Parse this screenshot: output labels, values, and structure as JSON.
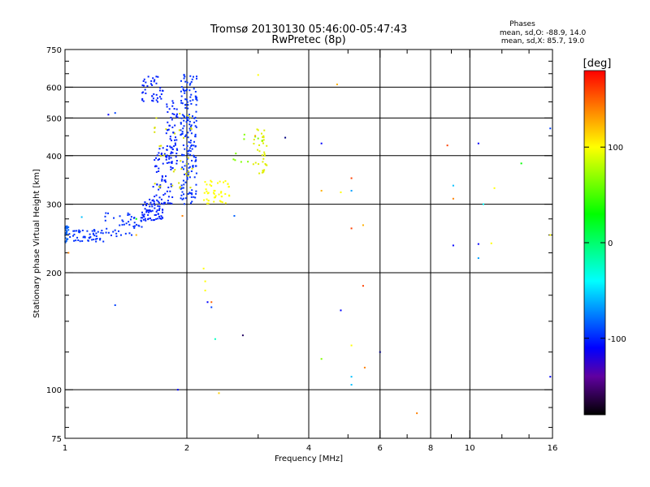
{
  "chart_data": {
    "type": "scatter",
    "title": "Tromsø 20130130 05:46:00-05:47:43",
    "subtitle": "RwPretec (8p)",
    "xlabel": "Frequency [MHz]",
    "ylabel": "Stationary phase Virtual Height [km]",
    "x_scale": "log",
    "y_scale": "log",
    "xlim": [
      1,
      16
    ],
    "ylim": [
      75,
      750
    ],
    "x_ticks": [
      {
        "value": 1,
        "label": "1"
      },
      {
        "value": 2,
        "label": "2"
      },
      {
        "value": 4,
        "label": "4"
      },
      {
        "value": 6,
        "label": "6"
      },
      {
        "value": 8,
        "label": "8"
      },
      {
        "value": 10,
        "label": "10"
      },
      {
        "value": 16,
        "label": "16"
      }
    ],
    "x_minor_ticks": [
      3,
      5,
      7,
      9,
      12,
      14
    ],
    "x_gridlines": [
      2,
      4,
      6,
      8,
      10
    ],
    "y_ticks": [
      {
        "value": 75,
        "label": "75"
      },
      {
        "value": 100,
        "label": "100"
      },
      {
        "value": 200,
        "label": "200"
      },
      {
        "value": 300,
        "label": "300"
      },
      {
        "value": 400,
        "label": "400"
      },
      {
        "value": 500,
        "label": "500"
      },
      {
        "value": 600,
        "label": "600"
      },
      {
        "value": 750,
        "label": "750"
      }
    ],
    "y_minor_ticks": [
      80,
      90,
      125,
      150,
      175,
      225,
      250,
      275,
      350,
      450,
      550,
      650,
      700
    ],
    "y_gridlines": [
      100,
      200,
      300,
      400,
      500,
      600
    ],
    "grid": true,
    "legend": {
      "title": "Phases",
      "lines": [
        "mean, sd,O: -88.9, 14.0",
        "mean, sd,X: 85.7, 19.0"
      ],
      "placement": "top-right"
    },
    "colorbar": {
      "label": "[deg]",
      "range": [
        -180,
        180
      ],
      "ticks": [
        {
          "value": 100,
          "label": "100"
        },
        {
          "value": 0,
          "label": "0"
        },
        {
          "value": -100,
          "label": "-100"
        }
      ],
      "stops": [
        {
          "value": -180,
          "color": "#000000"
        },
        {
          "value": -140,
          "color": "#6000a0"
        },
        {
          "value": -110,
          "color": "#0000ff"
        },
        {
          "value": -40,
          "color": "#00ffff"
        },
        {
          "value": 30,
          "color": "#00ff00"
        },
        {
          "value": 100,
          "color": "#ffff00"
        },
        {
          "value": 140,
          "color": "#ff8000"
        },
        {
          "value": 180,
          "color": "#ff0000"
        }
      ]
    },
    "clusters": [
      {
        "x_range": [
          1.0,
          1.02
        ],
        "y_range": [
          238,
          265
        ],
        "n": 25,
        "color": "#0060ff"
      },
      {
        "x_range": [
          1.02,
          1.25
        ],
        "y_range": [
          240,
          258
        ],
        "n": 50,
        "color": "#0030ff"
      },
      {
        "x_range": [
          1.25,
          1.55
        ],
        "y_range": [
          248,
          285
        ],
        "n": 45,
        "color": "#0030ff"
      },
      {
        "x_range": [
          1.55,
          1.75
        ],
        "y_range": [
          272,
          310
        ],
        "n": 70,
        "color": "#0020ff"
      },
      {
        "x_range": [
          1.65,
          1.85
        ],
        "y_range": [
          300,
          420
        ],
        "n": 70,
        "color": "#0020ff"
      },
      {
        "x_range": [
          1.78,
          1.9
        ],
        "y_range": [
          380,
          560
        ],
        "n": 55,
        "color": "#0020ff"
      },
      {
        "x_range": [
          1.55,
          1.75
        ],
        "y_range": [
          550,
          650
        ],
        "n": 40,
        "color": "#0020ff"
      },
      {
        "x_range": [
          1.93,
          2.12
        ],
        "y_range": [
          300,
          660
        ],
        "n": 180,
        "color": "#0030ff"
      },
      {
        "x_range": [
          1.65,
          2.1
        ],
        "y_range": [
          330,
          520
        ],
        "n": 35,
        "color": "#d8e000"
      },
      {
        "x_range": [
          2.2,
          2.55
        ],
        "y_range": [
          300,
          345
        ],
        "n": 45,
        "color": "#ffff00"
      },
      {
        "x_range": [
          2.9,
          3.15
        ],
        "y_range": [
          360,
          480
        ],
        "n": 35,
        "color": "#e0ef00"
      },
      {
        "x_range": [
          2.6,
          3.1
        ],
        "y_range": [
          360,
          470
        ],
        "n": 10,
        "color": "#80ff00"
      }
    ],
    "points": [
      {
        "x": 1.02,
        "y": 225,
        "color": "#ff8000"
      },
      {
        "x": 1.33,
        "y": 165,
        "color": "#0040ff"
      },
      {
        "x": 1.28,
        "y": 510,
        "color": "#0000ff"
      },
      {
        "x": 1.33,
        "y": 515,
        "color": "#0040ff"
      },
      {
        "x": 1.1,
        "y": 278,
        "color": "#00c0ff"
      },
      {
        "x": 1.5,
        "y": 250,
        "color": "#ffb000"
      },
      {
        "x": 1.5,
        "y": 275,
        "color": "#00ff00"
      },
      {
        "x": 1.9,
        "y": 100,
        "color": "#0000ff"
      },
      {
        "x": 1.95,
        "y": 280,
        "color": "#ff8000"
      },
      {
        "x": 2.2,
        "y": 205,
        "color": "#ffff00"
      },
      {
        "x": 2.22,
        "y": 190,
        "color": "#ffff00"
      },
      {
        "x": 2.22,
        "y": 180,
        "color": "#ffff00"
      },
      {
        "x": 2.25,
        "y": 168,
        "color": "#0000ff"
      },
      {
        "x": 2.3,
        "y": 168,
        "color": "#ff6000"
      },
      {
        "x": 2.3,
        "y": 163,
        "color": "#0040ff"
      },
      {
        "x": 2.35,
        "y": 135,
        "color": "#00ffc0"
      },
      {
        "x": 2.4,
        "y": 98,
        "color": "#ffd000"
      },
      {
        "x": 2.62,
        "y": 280,
        "color": "#0060ff"
      },
      {
        "x": 2.75,
        "y": 138,
        "color": "#200060"
      },
      {
        "x": 2.95,
        "y": 450,
        "color": "#ffb000"
      },
      {
        "x": 3.0,
        "y": 645,
        "color": "#ffff00"
      },
      {
        "x": 3.5,
        "y": 445,
        "color": "#000080"
      },
      {
        "x": 4.3,
        "y": 430,
        "color": "#0000ff"
      },
      {
        "x": 4.3,
        "y": 325,
        "color": "#ffb000"
      },
      {
        "x": 4.3,
        "y": 120,
        "color": "#80ff00"
      },
      {
        "x": 4.7,
        "y": 610,
        "color": "#ffb000"
      },
      {
        "x": 4.8,
        "y": 322,
        "color": "#ffff00"
      },
      {
        "x": 4.8,
        "y": 160,
        "color": "#0000ff"
      },
      {
        "x": 5.1,
        "y": 350,
        "color": "#ff4000"
      },
      {
        "x": 5.1,
        "y": 325,
        "color": "#00a0ff"
      },
      {
        "x": 5.1,
        "y": 260,
        "color": "#ff4000"
      },
      {
        "x": 5.1,
        "y": 130,
        "color": "#ffff00"
      },
      {
        "x": 5.1,
        "y": 108,
        "color": "#00c0ff"
      },
      {
        "x": 5.1,
        "y": 103,
        "color": "#00c0ff"
      },
      {
        "x": 5.45,
        "y": 265,
        "color": "#ffb000"
      },
      {
        "x": 5.45,
        "y": 185,
        "color": "#ff4000"
      },
      {
        "x": 5.5,
        "y": 114,
        "color": "#ff8000"
      },
      {
        "x": 6.0,
        "y": 125,
        "color": "#000080"
      },
      {
        "x": 7.4,
        "y": 87,
        "color": "#ff8000"
      },
      {
        "x": 8.8,
        "y": 425,
        "color": "#ff4000"
      },
      {
        "x": 9.1,
        "y": 335,
        "color": "#00c0ff"
      },
      {
        "x": 9.1,
        "y": 310,
        "color": "#ff8000"
      },
      {
        "x": 9.1,
        "y": 235,
        "color": "#0000ff"
      },
      {
        "x": 10.5,
        "y": 430,
        "color": "#0000ff"
      },
      {
        "x": 10.5,
        "y": 237,
        "color": "#0000ff"
      },
      {
        "x": 10.5,
        "y": 218,
        "color": "#00a0ff"
      },
      {
        "x": 10.8,
        "y": 300,
        "color": "#00ffff"
      },
      {
        "x": 11.5,
        "y": 330,
        "color": "#ffff00"
      },
      {
        "x": 11.3,
        "y": 238,
        "color": "#ffff00"
      },
      {
        "x": 13.4,
        "y": 382,
        "color": "#00ff00"
      },
      {
        "x": 15.8,
        "y": 470,
        "color": "#0040ff"
      },
      {
        "x": 15.8,
        "y": 250,
        "color": "#ffff00"
      },
      {
        "x": 15.8,
        "y": 108,
        "color": "#0000ff"
      }
    ]
  }
}
